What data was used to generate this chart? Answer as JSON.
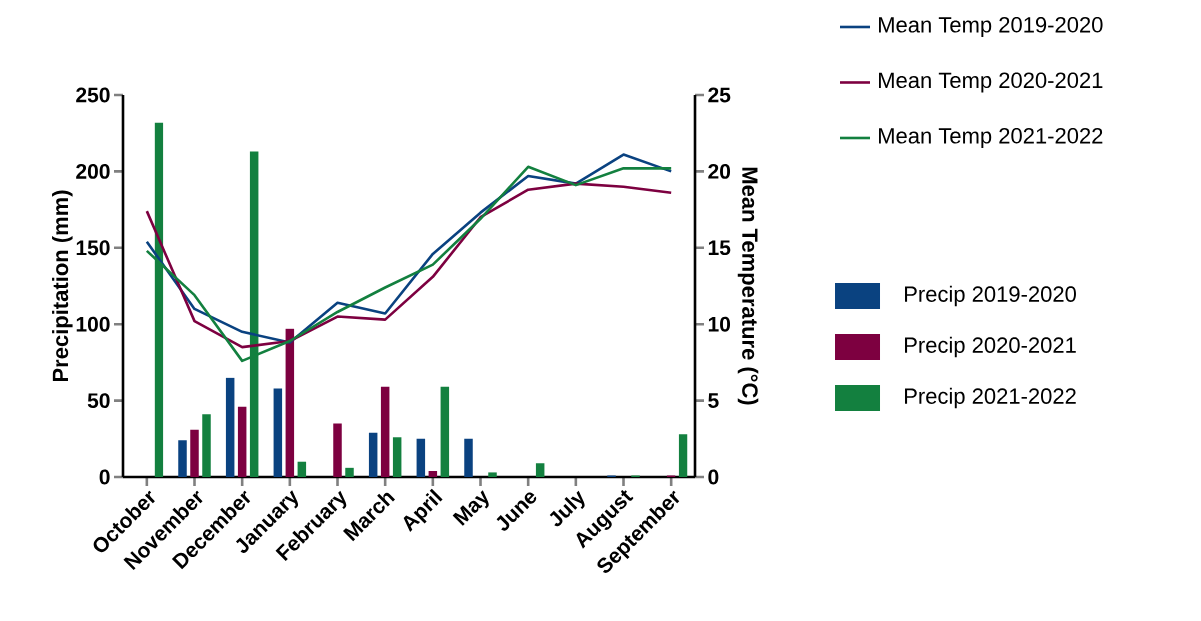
{
  "chart_data": {
    "type": "bar",
    "categories": [
      "October",
      "November",
      "December",
      "January",
      "February",
      "March",
      "April",
      "May",
      "June",
      "July",
      "August",
      "September"
    ],
    "ylabel": "Precipitation (mm)",
    "y2label": "Mean Temperature (°C)",
    "ylim": [
      0,
      250
    ],
    "yticks": [
      0,
      50,
      100,
      150,
      200,
      250
    ],
    "y2lim": [
      0,
      25
    ],
    "y2ticks": [
      0,
      5,
      10,
      15,
      20,
      25
    ],
    "legend": "right",
    "series": [
      {
        "name": "Mean Temp 2019-2020",
        "type": "line",
        "axis": "y2",
        "color": "#0a4280",
        "values": [
          15.4,
          11.0,
          9.5,
          8.8,
          11.4,
          10.7,
          14.6,
          17.3,
          19.7,
          19.2,
          21.1,
          20.0
        ]
      },
      {
        "name": "Mean Temp 2020-2021",
        "type": "line",
        "axis": "y2",
        "color": "#7d0040",
        "values": [
          17.4,
          10.2,
          8.5,
          8.9,
          10.5,
          10.3,
          13.1,
          17.0,
          18.8,
          19.2,
          19.0,
          18.6
        ]
      },
      {
        "name": "Mean Temp 2021-2022",
        "type": "line",
        "axis": "y2",
        "color": "#13803f",
        "values": [
          14.8,
          11.9,
          7.6,
          8.9,
          10.8,
          12.4,
          13.9,
          16.9,
          20.3,
          19.1,
          20.2,
          20.2
        ]
      },
      {
        "name": "Precip 2019-2020",
        "color": "#0a4280",
        "values": [
          0,
          24,
          65,
          58,
          0,
          29,
          25,
          25,
          0,
          0,
          1,
          0
        ]
      },
      {
        "name": "Precip 2020-2021",
        "color": "#7d0040",
        "values": [
          0,
          31,
          46,
          97,
          35,
          59,
          4,
          0,
          0,
          0,
          0,
          1
        ]
      },
      {
        "name": "Precip 2021-2022",
        "color": "#13803f",
        "values": [
          232,
          41,
          213,
          10,
          6,
          26,
          59,
          3,
          9,
          0,
          1,
          28
        ]
      }
    ]
  }
}
